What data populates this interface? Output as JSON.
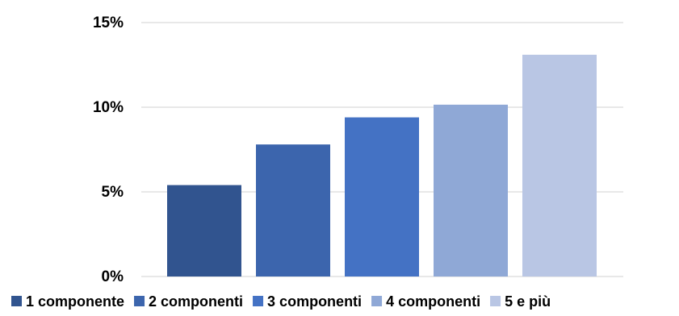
{
  "chart_data": {
    "type": "bar",
    "categories": [
      "1 componente",
      "2 componenti",
      "3 componenti",
      "4 componenti",
      "5 e più"
    ],
    "values": [
      5.4,
      7.8,
      9.4,
      10.15,
      13.1
    ],
    "ylim": [
      0,
      15
    ],
    "yticks": [
      0,
      5,
      10,
      15
    ],
    "ytick_labels": [
      "0%",
      "5%",
      "10%",
      "15%"
    ],
    "grid": true,
    "legend_position": "bottom",
    "colors": [
      "#31548f",
      "#3c65ad",
      "#4472c4",
      "#8fa8d6",
      "#b9c6e4"
    ],
    "gridline_color": "#d9d9d9"
  }
}
